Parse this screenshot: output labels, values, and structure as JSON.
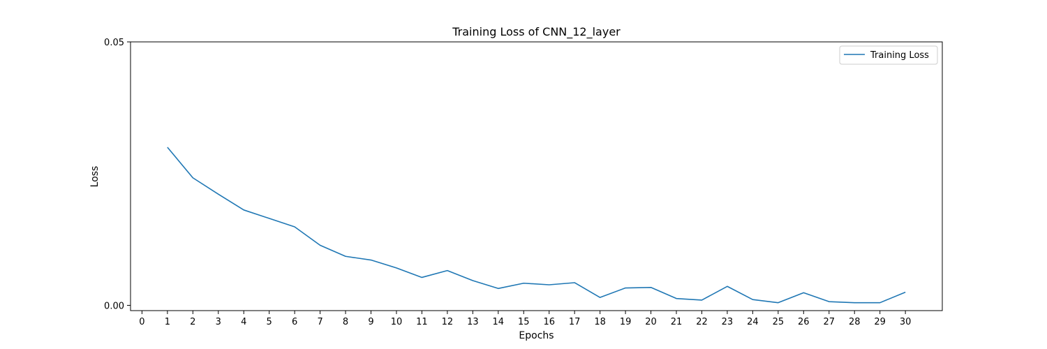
{
  "chart_data": {
    "type": "line",
    "title": "Training Loss of CNN_12_layer",
    "xlabel": "Epochs",
    "ylabel": "Loss",
    "x_ticks": [
      "0",
      "1",
      "2",
      "3",
      "4",
      "5",
      "6",
      "7",
      "8",
      "9",
      "10",
      "11",
      "12",
      "13",
      "14",
      "15",
      "16",
      "17",
      "18",
      "19",
      "20",
      "21",
      "22",
      "23",
      "24",
      "25",
      "26",
      "27",
      "28",
      "29",
      "30"
    ],
    "y_ticks": [
      "0.00",
      "0.05"
    ],
    "xlim": [
      -0.45,
      31.45
    ],
    "ylim": [
      -0.001,
      0.05
    ],
    "grid": false,
    "legend": "top-right",
    "series": [
      {
        "name": "Training Loss",
        "color": "#1f77b4",
        "x": [
          1,
          2,
          3,
          4,
          5,
          6,
          7,
          8,
          9,
          10,
          11,
          12,
          13,
          14,
          15,
          16,
          17,
          18,
          19,
          20,
          21,
          22,
          23,
          24,
          25,
          26,
          27,
          28,
          29,
          30
        ],
        "values": [
          0.03,
          0.0242,
          0.0211,
          0.0181,
          0.0165,
          0.0149,
          0.0114,
          0.0093,
          0.0086,
          0.0071,
          0.0053,
          0.0066,
          0.0047,
          0.0032,
          0.0042,
          0.0039,
          0.0043,
          0.0015,
          0.0033,
          0.0034,
          0.0013,
          0.001,
          0.0036,
          0.0011,
          0.0005,
          0.0024,
          0.0007,
          0.0005,
          0.0005,
          0.0025
        ]
      }
    ]
  }
}
